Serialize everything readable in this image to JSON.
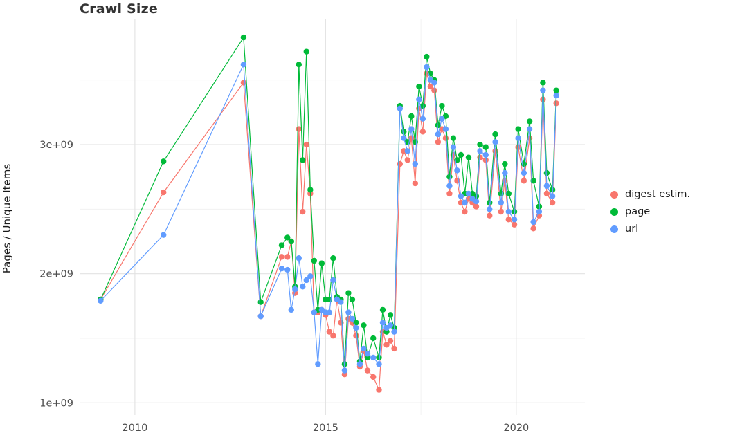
{
  "page": {
    "background": "#ffffff"
  },
  "chart_data": {
    "type": "line",
    "style": "lines with point markers (ggplot style)",
    "title": "Crawl Size",
    "xlabel": "",
    "ylabel": "Pages / Unique Items",
    "legend_position": "right",
    "grid": true,
    "grid_major_color": "#e2e2e2",
    "grid_minor_color": "#efefef",
    "axis_text_color": "#4d4d4d",
    "x_range": [
      2008.55,
      2021.8
    ],
    "y_unit": "1e9 (billions)",
    "y_range_billion": [
      0.905,
      3.97
    ],
    "x_ticks": [
      {
        "value": 2010,
        "label": "2010"
      },
      {
        "value": 2015,
        "label": "2015"
      },
      {
        "value": 2020,
        "label": "2020"
      }
    ],
    "y_ticks": [
      {
        "value": 1,
        "label": "1e+09"
      },
      {
        "value": 2,
        "label": "2e+09"
      },
      {
        "value": 3,
        "label": "3e+09"
      }
    ],
    "x_minor_gridlines": [
      2012.5,
      2017.5
    ],
    "y_minor_gridlines": [
      1.5,
      2.5,
      3.5
    ],
    "x": [
      2009.1,
      2010.75,
      2012.85,
      2013.3,
      2013.85,
      2014.0,
      2014.1,
      2014.2,
      2014.3,
      2014.4,
      2014.5,
      2014.6,
      2014.7,
      2014.8,
      2014.9,
      2015.0,
      2015.1,
      2015.2,
      2015.3,
      2015.4,
      2015.5,
      2015.6,
      2015.7,
      2015.8,
      2015.9,
      2016.0,
      2016.1,
      2016.25,
      2016.4,
      2016.5,
      2016.6,
      2016.7,
      2016.8,
      2016.95,
      2017.05,
      2017.15,
      2017.25,
      2017.35,
      2017.45,
      2017.55,
      2017.65,
      2017.75,
      2017.85,
      2017.95,
      2018.05,
      2018.15,
      2018.25,
      2018.35,
      2018.45,
      2018.55,
      2018.65,
      2018.75,
      2018.85,
      2018.95,
      2019.05,
      2019.2,
      2019.3,
      2019.45,
      2019.6,
      2019.7,
      2019.8,
      2019.95,
      2020.05,
      2020.2,
      2020.35,
      2020.45,
      2020.6,
      2020.7,
      2020.8,
      2020.95,
      2021.05
    ],
    "series": [
      {
        "name": "digest estim.",
        "color": "#F8766D",
        "values_billion": [
          1.8,
          2.63,
          3.48,
          1.67,
          2.13,
          2.13,
          2.25,
          1.85,
          3.12,
          2.48,
          3.0,
          2.62,
          1.7,
          1.7,
          1.72,
          1.68,
          1.55,
          1.52,
          1.8,
          1.62,
          1.22,
          1.65,
          1.62,
          1.52,
          1.28,
          1.4,
          1.25,
          1.2,
          1.1,
          1.55,
          1.45,
          1.48,
          1.42,
          2.85,
          2.95,
          2.88,
          3.05,
          2.7,
          3.28,
          3.1,
          3.55,
          3.45,
          3.42,
          3.02,
          3.12,
          3.05,
          2.62,
          2.92,
          2.72,
          2.55,
          2.48,
          2.58,
          2.55,
          2.52,
          2.9,
          2.88,
          2.45,
          2.95,
          2.48,
          2.72,
          2.42,
          2.38,
          2.98,
          2.72,
          3.05,
          2.35,
          2.45,
          3.35,
          2.62,
          2.55,
          3.32
        ]
      },
      {
        "name": "page",
        "color": "#00BA38",
        "values_billion": [
          1.8,
          2.87,
          3.83,
          1.78,
          2.22,
          2.28,
          2.25,
          1.9,
          3.62,
          2.88,
          3.72,
          2.65,
          2.1,
          1.72,
          2.08,
          1.8,
          1.8,
          2.12,
          1.82,
          1.8,
          1.3,
          1.85,
          1.8,
          1.62,
          1.32,
          1.6,
          1.35,
          1.5,
          1.35,
          1.72,
          1.55,
          1.68,
          1.58,
          3.3,
          3.1,
          3.02,
          3.22,
          3.02,
          3.45,
          3.3,
          3.68,
          3.55,
          3.5,
          3.15,
          3.3,
          3.22,
          2.75,
          3.05,
          2.88,
          2.92,
          2.62,
          2.9,
          2.62,
          2.6,
          3.0,
          2.98,
          2.55,
          3.08,
          2.62,
          2.85,
          2.62,
          2.48,
          3.12,
          2.85,
          3.18,
          2.72,
          2.52,
          3.48,
          2.78,
          2.65,
          3.42
        ]
      },
      {
        "name": "url",
        "color": "#619CFF",
        "values_billion": [
          1.79,
          2.3,
          3.62,
          1.67,
          2.04,
          2.03,
          1.72,
          1.88,
          2.12,
          1.9,
          1.95,
          1.98,
          1.7,
          1.3,
          1.72,
          1.7,
          1.7,
          1.95,
          1.8,
          1.78,
          1.25,
          1.7,
          1.65,
          1.58,
          1.3,
          1.42,
          1.38,
          1.35,
          1.3,
          1.62,
          1.58,
          1.6,
          1.55,
          3.28,
          3.05,
          2.95,
          3.12,
          2.85,
          3.35,
          3.2,
          3.6,
          3.5,
          3.48,
          3.08,
          3.2,
          3.12,
          2.68,
          2.98,
          2.8,
          2.6,
          2.55,
          2.62,
          2.58,
          2.56,
          2.95,
          2.92,
          2.5,
          3.02,
          2.55,
          2.78,
          2.48,
          2.42,
          3.05,
          2.78,
          3.12,
          2.4,
          2.48,
          3.42,
          2.68,
          2.6,
          3.38
        ]
      }
    ]
  }
}
